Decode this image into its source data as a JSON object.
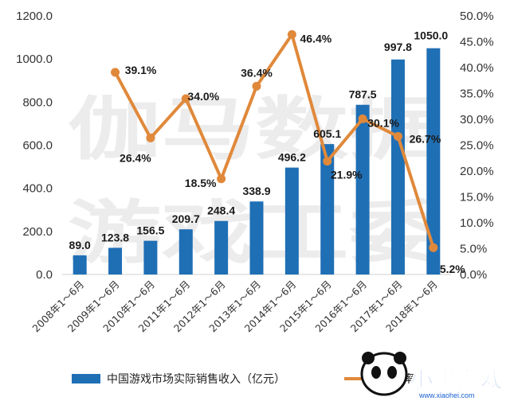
{
  "chart_data": {
    "type": "bar",
    "categories": [
      "2008年1～6月",
      "2009年1～6月",
      "2010年1～6月",
      "2011年1～6月",
      "2012年1～6月",
      "2013年1～6月",
      "2014年1～6月",
      "2015年1～6月",
      "2016年1～6月",
      "2017年1～6月",
      "2018年1～6月"
    ],
    "series": [
      {
        "name": "中国游戏市场实际销售收入（亿元）",
        "type": "bar",
        "axis": "left",
        "color": "#1f6fb5",
        "values": [
          89.0,
          123.8,
          156.5,
          209.7,
          248.4,
          338.9,
          496.2,
          605.1,
          787.5,
          997.8,
          1050.0
        ],
        "labels": [
          "89.0",
          "123.8",
          "156.5",
          "209.7",
          "248.4",
          "338.9",
          "496.2",
          "605.1",
          "787.5",
          "997.8",
          "1050.0"
        ]
      },
      {
        "type": "line",
        "axis": "right",
        "color": "#e0893b",
        "values": [
          null,
          39.1,
          26.4,
          34.0,
          18.5,
          36.4,
          46.4,
          21.9,
          30.1,
          26.7,
          5.2
        ],
        "labels": [
          "",
          "39.1%",
          "26.4%",
          "34.0%",
          "18.5%",
          "36.4%",
          "46.4%",
          "21.9%",
          "30.1%",
          "26.7%",
          "5.2%"
        ]
      }
    ],
    "y_left": {
      "range": [
        0,
        1200
      ],
      "ticks": [
        "0.0",
        "200.0",
        "400.0",
        "600.0",
        "800.0",
        "1000.0",
        "1200.0"
      ]
    },
    "y_right": {
      "range": [
        0,
        50
      ],
      "ticks": [
        "0.0%",
        "5.0%",
        "10.0%",
        "15.0%",
        "20.0%",
        "25.0%",
        "30.0%",
        "35.0%",
        "40.0%",
        "45.0%",
        "50.0%"
      ]
    },
    "grid": false,
    "legend_position": "bottom",
    "legend_line_text_visible": "增长率"
  },
  "watermark": {
    "line1": "伽马数据",
    "line2": "游戏工委"
  },
  "logo": {
    "word": "小黑游戏",
    "url": "www.xiaohei.com"
  }
}
